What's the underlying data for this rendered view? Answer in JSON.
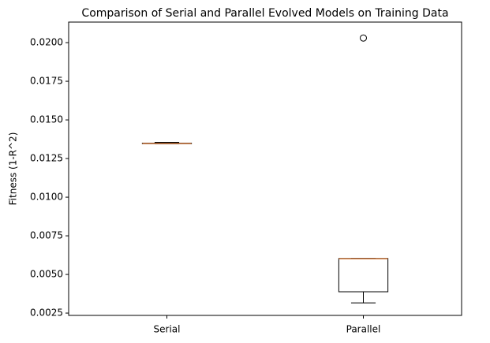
{
  "chart_data": {
    "type": "box",
    "title": "Comparison of Serial and Parallel Evolved Models on Training Data",
    "y_label": "Fitness (1-R^2)",
    "categories": [
      "Serial",
      "Parallel"
    ],
    "boxes": [
      {
        "whislo": 0.01345,
        "q1": 0.01346,
        "med": 0.01347,
        "q3": 0.0135,
        "whishi": 0.01355,
        "fliers": []
      },
      {
        "whislo": 0.00316,
        "q1": 0.00388,
        "med": 0.00602,
        "q3": 0.00604,
        "whishi": 0.00604,
        "fliers": [
          0.0203
        ]
      }
    ],
    "box_color": "#000000",
    "median_color": "#d9844a",
    "ylim": [
      0.00235,
      0.02133
    ],
    "yticks": [
      0.0025,
      {
        "value": 0.005,
        "label": "0.0050"
      },
      0.0075,
      {
        "value": 0.01,
        "label": "0.0100"
      },
      0.0125,
      {
        "value": 0.015,
        "label": "0.0150"
      },
      0.0175,
      {
        "value": 0.02,
        "label": "0.0200"
      }
    ],
    "grid": false
  }
}
